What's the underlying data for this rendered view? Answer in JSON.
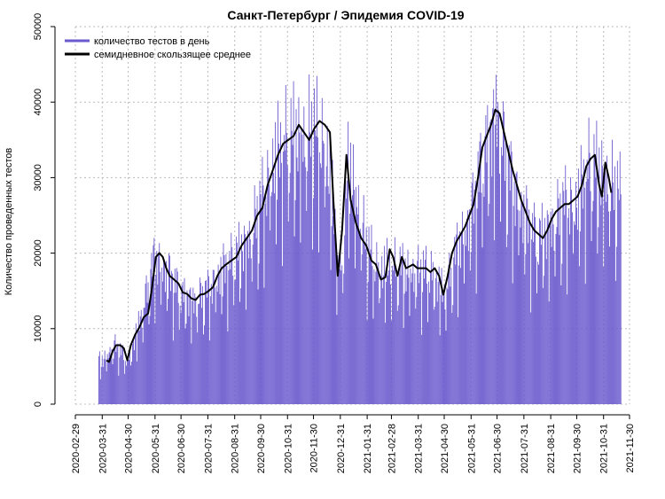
{
  "chart_data": {
    "type": "bar",
    "title": "Санкт-Петербург / Эпидемия COVID-19",
    "xlabel": "",
    "ylabel": "Количество проведенных тестов",
    "ylim": [
      0,
      50000
    ],
    "xlim": [
      "2020-02-29",
      "2021-11-30"
    ],
    "y_ticks": [
      "0",
      "10000",
      "20000",
      "30000",
      "40000",
      "50000"
    ],
    "x_ticks": [
      "2020-02-29",
      "2020-03-31",
      "2020-04-30",
      "2020-05-31",
      "2020-06-30",
      "2020-07-31",
      "2020-08-31",
      "2020-09-30",
      "2020-10-31",
      "2020-11-30",
      "2020-12-31",
      "2021-01-31",
      "2021-02-28",
      "2021-03-31",
      "2021-04-30",
      "2021-05-31",
      "2021-06-30",
      "2021-07-31",
      "2021-08-31",
      "2021-09-30",
      "2021-10-31",
      "2021-11-30"
    ],
    "grid": true,
    "legend_position": "top-left",
    "colors": {
      "bars": "#6a5acd",
      "ma_line": "#000000",
      "grid": "#bbbbbb"
    },
    "series": [
      {
        "name": "количество тестов в день",
        "kind": "bar",
        "x_start": "2020-03-27",
        "x_end": "2021-11-20",
        "values_approx": [
          {
            "x": "2020-04-01",
            "y": 6000
          },
          {
            "x": "2020-04-15",
            "y": 8000
          },
          {
            "x": "2020-04-30",
            "y": 6000
          },
          {
            "x": "2020-05-15",
            "y": 12000
          },
          {
            "x": "2020-05-31",
            "y": 20000
          },
          {
            "x": "2020-06-15",
            "y": 18000
          },
          {
            "x": "2020-06-30",
            "y": 15000
          },
          {
            "x": "2020-07-15",
            "y": 14000
          },
          {
            "x": "2020-07-31",
            "y": 15500
          },
          {
            "x": "2020-08-15",
            "y": 18000
          },
          {
            "x": "2020-08-31",
            "y": 20000
          },
          {
            "x": "2020-09-15",
            "y": 22000
          },
          {
            "x": "2020-09-30",
            "y": 27000
          },
          {
            "x": "2020-10-15",
            "y": 33000
          },
          {
            "x": "2020-10-31",
            "y": 36000
          },
          {
            "x": "2020-11-15",
            "y": 36000
          },
          {
            "x": "2020-11-30",
            "y": 37000
          },
          {
            "x": "2020-12-15",
            "y": 35000
          },
          {
            "x": "2020-12-31",
            "y": 17000
          },
          {
            "x": "2021-01-10",
            "y": 33000
          },
          {
            "x": "2021-01-31",
            "y": 21000
          },
          {
            "x": "2021-02-15",
            "y": 18000
          },
          {
            "x": "2021-02-28",
            "y": 19000
          },
          {
            "x": "2021-03-15",
            "y": 18000
          },
          {
            "x": "2021-03-31",
            "y": 18000
          },
          {
            "x": "2021-04-15",
            "y": 18000
          },
          {
            "x": "2021-04-30",
            "y": 15000
          },
          {
            "x": "2021-05-15",
            "y": 21000
          },
          {
            "x": "2021-05-31",
            "y": 26000
          },
          {
            "x": "2021-06-15",
            "y": 34000
          },
          {
            "x": "2021-06-30",
            "y": 39500
          },
          {
            "x": "2021-07-15",
            "y": 31000
          },
          {
            "x": "2021-07-31",
            "y": 26000
          },
          {
            "x": "2021-08-15",
            "y": 22500
          },
          {
            "x": "2021-08-31",
            "y": 24000
          },
          {
            "x": "2021-09-15",
            "y": 27000
          },
          {
            "x": "2021-09-30",
            "y": 27500
          },
          {
            "x": "2021-10-15",
            "y": 32500
          },
          {
            "x": "2021-10-31",
            "y": 31000
          },
          {
            "x": "2021-11-20",
            "y": 28000
          }
        ]
      },
      {
        "name": "семидневное скользящее среднее",
        "kind": "line",
        "points": [
          {
            "x": "2020-04-05",
            "y": 5800
          },
          {
            "x": "2020-04-08",
            "y": 5600
          },
          {
            "x": "2020-04-12",
            "y": 7000
          },
          {
            "x": "2020-04-16",
            "y": 7800
          },
          {
            "x": "2020-04-21",
            "y": 7800
          },
          {
            "x": "2020-04-25",
            "y": 7400
          },
          {
            "x": "2020-04-29",
            "y": 5800
          },
          {
            "x": "2020-05-03",
            "y": 7800
          },
          {
            "x": "2020-05-08",
            "y": 9200
          },
          {
            "x": "2020-05-13",
            "y": 10200
          },
          {
            "x": "2020-05-18",
            "y": 11500
          },
          {
            "x": "2020-05-23",
            "y": 12000
          },
          {
            "x": "2020-05-27",
            "y": 15000
          },
          {
            "x": "2020-06-01",
            "y": 19500
          },
          {
            "x": "2020-06-05",
            "y": 20000
          },
          {
            "x": "2020-06-09",
            "y": 19500
          },
          {
            "x": "2020-06-13",
            "y": 18000
          },
          {
            "x": "2020-06-17",
            "y": 17000
          },
          {
            "x": "2020-06-22",
            "y": 16500
          },
          {
            "x": "2020-06-27",
            "y": 16000
          },
          {
            "x": "2020-07-02",
            "y": 14800
          },
          {
            "x": "2020-07-07",
            "y": 14600
          },
          {
            "x": "2020-07-12",
            "y": 14000
          },
          {
            "x": "2020-07-17",
            "y": 13800
          },
          {
            "x": "2020-07-22",
            "y": 14500
          },
          {
            "x": "2020-07-27",
            "y": 14600
          },
          {
            "x": "2020-08-01",
            "y": 15000
          },
          {
            "x": "2020-08-06",
            "y": 15500
          },
          {
            "x": "2020-08-11",
            "y": 17000
          },
          {
            "x": "2020-08-16",
            "y": 18000
          },
          {
            "x": "2020-08-21",
            "y": 18500
          },
          {
            "x": "2020-08-27",
            "y": 19000
          },
          {
            "x": "2020-09-02",
            "y": 19500
          },
          {
            "x": "2020-09-08",
            "y": 21000
          },
          {
            "x": "2020-09-14",
            "y": 22000
          },
          {
            "x": "2020-09-20",
            "y": 23000
          },
          {
            "x": "2020-09-26",
            "y": 25000
          },
          {
            "x": "2020-10-02",
            "y": 26000
          },
          {
            "x": "2020-10-08",
            "y": 29000
          },
          {
            "x": "2020-10-14",
            "y": 31000
          },
          {
            "x": "2020-10-20",
            "y": 33000
          },
          {
            "x": "2020-10-26",
            "y": 34500
          },
          {
            "x": "2020-11-01",
            "y": 35000
          },
          {
            "x": "2020-11-07",
            "y": 35500
          },
          {
            "x": "2020-11-13",
            "y": 37000
          },
          {
            "x": "2020-11-19",
            "y": 36000
          },
          {
            "x": "2020-11-25",
            "y": 35000
          },
          {
            "x": "2020-12-01",
            "y": 36500
          },
          {
            "x": "2020-12-07",
            "y": 37500
          },
          {
            "x": "2020-12-13",
            "y": 37000
          },
          {
            "x": "2020-12-19",
            "y": 36000
          },
          {
            "x": "2020-12-23",
            "y": 27000
          },
          {
            "x": "2020-12-28",
            "y": 17000
          },
          {
            "x": "2021-01-02",
            "y": 23000
          },
          {
            "x": "2021-01-07",
            "y": 33000
          },
          {
            "x": "2021-01-12",
            "y": 27000
          },
          {
            "x": "2021-01-18",
            "y": 24000
          },
          {
            "x": "2021-01-24",
            "y": 22000
          },
          {
            "x": "2021-01-30",
            "y": 21000
          },
          {
            "x": "2021-02-05",
            "y": 19000
          },
          {
            "x": "2021-02-10",
            "y": 18500
          },
          {
            "x": "2021-02-16",
            "y": 16500
          },
          {
            "x": "2021-02-21",
            "y": 16800
          },
          {
            "x": "2021-02-26",
            "y": 20500
          },
          {
            "x": "2021-03-02",
            "y": 19500
          },
          {
            "x": "2021-03-07",
            "y": 17000
          },
          {
            "x": "2021-03-12",
            "y": 19500
          },
          {
            "x": "2021-03-17",
            "y": 18000
          },
          {
            "x": "2021-03-25",
            "y": 18500
          },
          {
            "x": "2021-03-30",
            "y": 18000
          },
          {
            "x": "2021-04-04",
            "y": 18000
          },
          {
            "x": "2021-04-09",
            "y": 18000
          },
          {
            "x": "2021-04-14",
            "y": 17500
          },
          {
            "x": "2021-04-19",
            "y": 18000
          },
          {
            "x": "2021-04-24",
            "y": 17000
          },
          {
            "x": "2021-04-29",
            "y": 14500
          },
          {
            "x": "2021-05-04",
            "y": 17000
          },
          {
            "x": "2021-05-09",
            "y": 20000
          },
          {
            "x": "2021-05-14",
            "y": 21500
          },
          {
            "x": "2021-05-19",
            "y": 22500
          },
          {
            "x": "2021-05-24",
            "y": 23500
          },
          {
            "x": "2021-05-29",
            "y": 25000
          },
          {
            "x": "2021-06-03",
            "y": 26500
          },
          {
            "x": "2021-06-08",
            "y": 30000
          },
          {
            "x": "2021-06-13",
            "y": 34000
          },
          {
            "x": "2021-06-18",
            "y": 35500
          },
          {
            "x": "2021-06-23",
            "y": 37000
          },
          {
            "x": "2021-06-28",
            "y": 39000
          },
          {
            "x": "2021-07-03",
            "y": 38500
          },
          {
            "x": "2021-07-08",
            "y": 36000
          },
          {
            "x": "2021-07-13",
            "y": 33500
          },
          {
            "x": "2021-07-18",
            "y": 31000
          },
          {
            "x": "2021-07-23",
            "y": 29000
          },
          {
            "x": "2021-07-28",
            "y": 27000
          },
          {
            "x": "2021-08-02",
            "y": 25500
          },
          {
            "x": "2021-08-07",
            "y": 24000
          },
          {
            "x": "2021-08-12",
            "y": 23000
          },
          {
            "x": "2021-08-17",
            "y": 22500
          },
          {
            "x": "2021-08-22",
            "y": 22000
          },
          {
            "x": "2021-08-27",
            "y": 23000
          },
          {
            "x": "2021-09-01",
            "y": 24500
          },
          {
            "x": "2021-09-06",
            "y": 25500
          },
          {
            "x": "2021-09-11",
            "y": 26000
          },
          {
            "x": "2021-09-16",
            "y": 26500
          },
          {
            "x": "2021-09-21",
            "y": 26500
          },
          {
            "x": "2021-09-26",
            "y": 27000
          },
          {
            "x": "2021-10-01",
            "y": 27500
          },
          {
            "x": "2021-10-06",
            "y": 29000
          },
          {
            "x": "2021-10-11",
            "y": 31500
          },
          {
            "x": "2021-10-16",
            "y": 32500
          },
          {
            "x": "2021-10-21",
            "y": 33000
          },
          {
            "x": "2021-10-26",
            "y": 29000
          },
          {
            "x": "2021-10-29",
            "y": 27500
          },
          {
            "x": "2021-11-02",
            "y": 32000
          },
          {
            "x": "2021-11-06",
            "y": 30000
          },
          {
            "x": "2021-11-09",
            "y": 28000
          }
        ]
      }
    ]
  }
}
